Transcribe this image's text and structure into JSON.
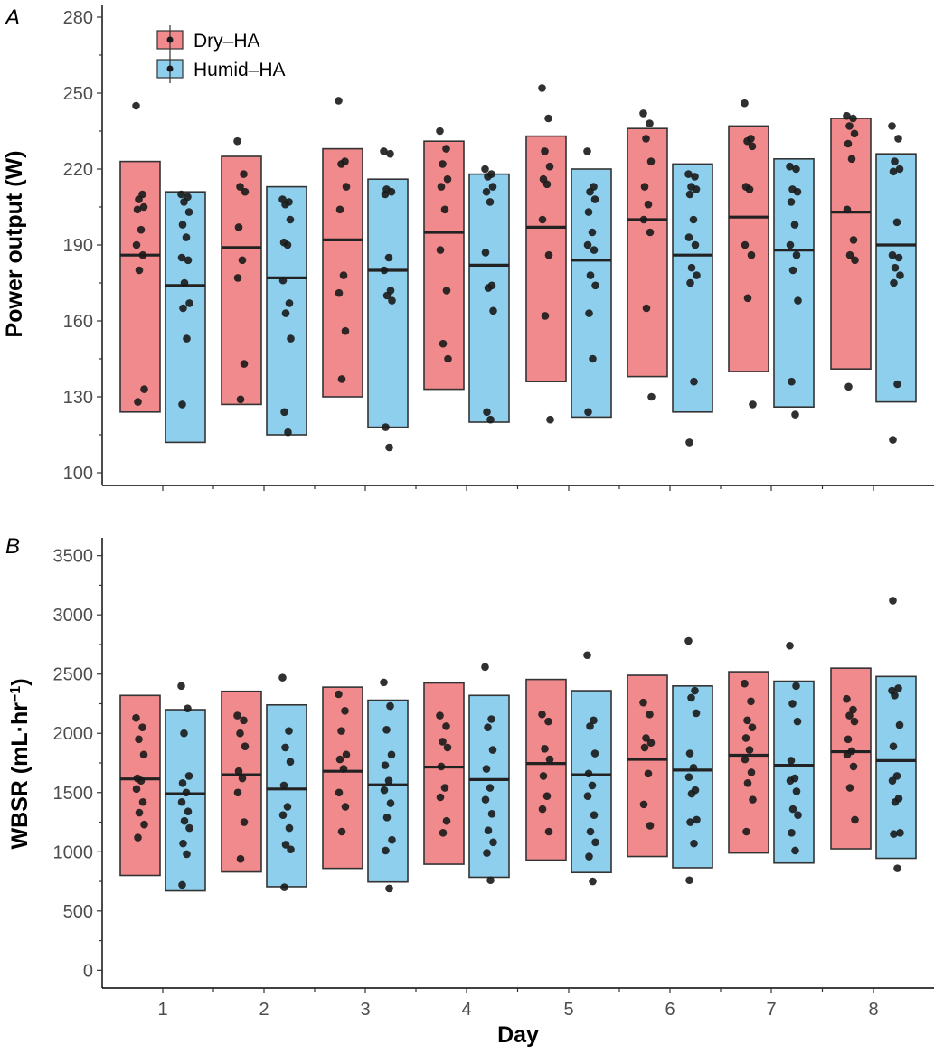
{
  "colors": {
    "dry": "#f08a8d",
    "humid": "#8ecfee",
    "box_stroke": "#333333",
    "point": "#1a1a1a"
  },
  "legend": {
    "position": "top-left of panel A",
    "items": [
      {
        "label": "Dry–HA",
        "color": "#f08a8d"
      },
      {
        "label": "Humid–HA",
        "color": "#8ecfee"
      }
    ]
  },
  "xaxis": {
    "title": "Day"
  },
  "chart_data": [
    {
      "type": "box",
      "panel": "A",
      "ylabel": "Power output (W)",
      "xlabel": "Day",
      "ylim": [
        95,
        285
      ],
      "yticks": [
        100,
        130,
        160,
        190,
        220,
        250,
        280
      ],
      "categories": [
        "1",
        "2",
        "3",
        "4",
        "5",
        "6",
        "7",
        "8"
      ],
      "series": [
        {
          "name": "Dry–HA",
          "color": "#f08a8d",
          "boxes": [
            {
              "low": 124,
              "mid": 186,
              "high": 223,
              "points": [
                245,
                210,
                208,
                205,
                204,
                196,
                190,
                186,
                180,
                133,
                128
              ]
            },
            {
              "low": 127,
              "mid": 189,
              "high": 225,
              "points": [
                231,
                218,
                213,
                211,
                197,
                184,
                177,
                143,
                129
              ]
            },
            {
              "low": 130,
              "mid": 192,
              "high": 228,
              "points": [
                247,
                223,
                222,
                213,
                204,
                178,
                171,
                156,
                137
              ]
            },
            {
              "low": 133,
              "mid": 195,
              "high": 231,
              "points": [
                235,
                228,
                222,
                216,
                213,
                204,
                188,
                172,
                151,
                145
              ]
            },
            {
              "low": 136,
              "mid": 197,
              "high": 233,
              "points": [
                252,
                240,
                227,
                221,
                216,
                214,
                200,
                186,
                162,
                121
              ]
            },
            {
              "low": 138,
              "mid": 200,
              "high": 236,
              "points": [
                242,
                238,
                232,
                223,
                213,
                206,
                200,
                195,
                165,
                130
              ]
            },
            {
              "low": 140,
              "mid": 201,
              "high": 237,
              "points": [
                246,
                232,
                231,
                229,
                213,
                212,
                190,
                186,
                169,
                127
              ]
            },
            {
              "low": 141,
              "mid": 203,
              "high": 240,
              "points": [
                241,
                240,
                237,
                234,
                230,
                224,
                204,
                192,
                186,
                184,
                134
              ]
            }
          ]
        },
        {
          "name": "Humid–HA",
          "color": "#8ecfee",
          "boxes": [
            {
              "low": 112,
              "mid": 174,
              "high": 211,
              "points": [
                210,
                209,
                207,
                203,
                198,
                193,
                185,
                184,
                175,
                167,
                165,
                153,
                127
              ]
            },
            {
              "low": 115,
              "mid": 177,
              "high": 213,
              "points": [
                208,
                207,
                206,
                200,
                191,
                190,
                176,
                167,
                163,
                153,
                124,
                116
              ]
            },
            {
              "low": 118,
              "mid": 180,
              "high": 216,
              "points": [
                227,
                226,
                212,
                211,
                210,
                185,
                180,
                172,
                170,
                168,
                118,
                110
              ]
            },
            {
              "low": 120,
              "mid": 182,
              "high": 218,
              "points": [
                220,
                218,
                217,
                213,
                211,
                207,
                187,
                174,
                173,
                164,
                124,
                121
              ]
            },
            {
              "low": 122,
              "mid": 184,
              "high": 220,
              "points": [
                227,
                213,
                211,
                208,
                203,
                195,
                190,
                188,
                178,
                174,
                163,
                145,
                124
              ]
            },
            {
              "low": 124,
              "mid": 186,
              "high": 222,
              "points": [
                218,
                217,
                213,
                212,
                210,
                200,
                193,
                190,
                181,
                178,
                175,
                136,
                112
              ]
            },
            {
              "low": 126,
              "mid": 188,
              "high": 224,
              "points": [
                221,
                220,
                212,
                211,
                207,
                198,
                190,
                186,
                180,
                168,
                136,
                123
              ]
            },
            {
              "low": 128,
              "mid": 190,
              "high": 226,
              "points": [
                237,
                232,
                223,
                220,
                219,
                199,
                186,
                185,
                181,
                178,
                175,
                135,
                113
              ]
            }
          ]
        }
      ]
    },
    {
      "type": "box",
      "panel": "B",
      "ylabel": "WBSR (mL·hr⁻¹)",
      "xlabel": "Day",
      "ylim": [
        -150,
        3650
      ],
      "yticks": [
        0,
        500,
        1000,
        1500,
        2000,
        2500,
        3000,
        3500
      ],
      "categories": [
        "1",
        "2",
        "3",
        "4",
        "5",
        "6",
        "7",
        "8"
      ],
      "series": [
        {
          "name": "Dry–HA",
          "color": "#f08a8d",
          "boxes": [
            {
              "low": 800,
              "mid": 1615,
              "high": 2320,
              "points": [
                2130,
                2050,
                1950,
                1820,
                1620,
                1600,
                1530,
                1420,
                1330,
                1230,
                1120
              ]
            },
            {
              "low": 830,
              "mid": 1650,
              "high": 2355,
              "points": [
                2150,
                2110,
                2000,
                1890,
                1680,
                1620,
                1500,
                1250,
                940
              ]
            },
            {
              "low": 860,
              "mid": 1680,
              "high": 2390,
              "points": [
                2330,
                2190,
                2020,
                1820,
                1780,
                1700,
                1500,
                1380,
                1170
              ]
            },
            {
              "low": 895,
              "mid": 1715,
              "high": 2425,
              "points": [
                2150,
                2060,
                1930,
                1880,
                1720,
                1540,
                1460,
                1260,
                1160
              ]
            },
            {
              "low": 930,
              "mid": 1745,
              "high": 2455,
              "points": [
                2160,
                2100,
                1870,
                1780,
                1640,
                1470,
                1360,
                1170
              ]
            },
            {
              "low": 960,
              "mid": 1780,
              "high": 2490,
              "points": [
                2260,
                2160,
                1960,
                1920,
                1880,
                1660,
                1400,
                1220
              ]
            },
            {
              "low": 990,
              "mid": 1815,
              "high": 2520,
              "points": [
                2420,
                2270,
                2110,
                2050,
                1960,
                1860,
                1780,
                1670,
                1580,
                1440,
                1170
              ]
            },
            {
              "low": 1025,
              "mid": 1845,
              "high": 2550,
              "points": [
                2290,
                2200,
                2150,
                2100,
                1950,
                1850,
                1820,
                1720,
                1540,
                1270
              ]
            }
          ]
        },
        {
          "name": "Humid–HA",
          "color": "#8ecfee",
          "boxes": [
            {
              "low": 670,
              "mid": 1490,
              "high": 2200,
              "points": [
                2400,
                2210,
                2000,
                1640,
                1580,
                1500,
                1420,
                1340,
                1260,
                1200,
                1070,
                980,
                720
              ]
            },
            {
              "low": 705,
              "mid": 1530,
              "high": 2240,
              "points": [
                2470,
                2020,
                1880,
                1760,
                1560,
                1380,
                1310,
                1200,
                1060,
                1020,
                700
              ]
            },
            {
              "low": 745,
              "mid": 1565,
              "high": 2280,
              "points": [
                2430,
                2230,
                2030,
                1820,
                1730,
                1600,
                1520,
                1410,
                1290,
                1100,
                1010,
                690
              ]
            },
            {
              "low": 785,
              "mid": 1610,
              "high": 2320,
              "points": [
                2560,
                2120,
                2050,
                1860,
                1700,
                1540,
                1440,
                1320,
                1180,
                1080,
                990,
                760
              ]
            },
            {
              "low": 825,
              "mid": 1650,
              "high": 2360,
              "points": [
                2660,
                2110,
                2060,
                1830,
                1660,
                1560,
                1470,
                1310,
                1170,
                1080,
                960,
                750
              ]
            },
            {
              "low": 865,
              "mid": 1690,
              "high": 2400,
              "points": [
                2780,
                2360,
                2300,
                2170,
                1830,
                1710,
                1630,
                1520,
                1490,
                1270,
                1250,
                1070,
                760
              ]
            },
            {
              "low": 905,
              "mid": 1730,
              "high": 2440,
              "points": [
                2740,
                2400,
                2250,
                2100,
                1770,
                1620,
                1600,
                1510,
                1360,
                1310,
                1160,
                1010
              ]
            },
            {
              "low": 945,
              "mid": 1770,
              "high": 2480,
              "points": [
                2360,
                2380,
                2320,
                2070,
                1890,
                1640,
                1600,
                1450,
                1420,
                1160,
                1150,
                860,
                3120
              ]
            }
          ]
        }
      ]
    }
  ]
}
